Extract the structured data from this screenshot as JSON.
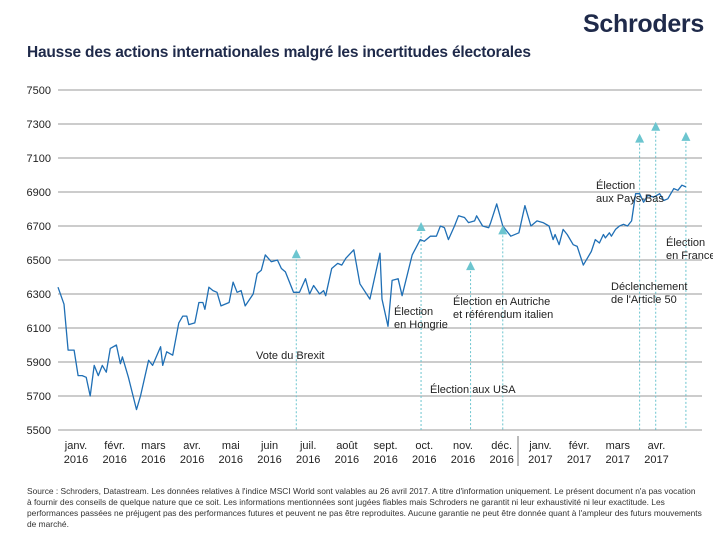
{
  "brand": "Schroders",
  "colors": {
    "brand_navy": "#1f2a4a",
    "line": "#1f6fb5",
    "marker": "#6cc5cf",
    "grid": "#9a9a9a"
  },
  "chart_data": {
    "type": "line",
    "title": "Hausse des actions internationales malgré les incertitudes électorales",
    "xlabel": "",
    "ylabel": "",
    "ylim": [
      5500,
      7500
    ],
    "yticks": [
      5500,
      5700,
      5900,
      6100,
      6300,
      6500,
      6700,
      6900,
      7100,
      7300,
      7500
    ],
    "grid": true,
    "x_unit": "months since January 2016",
    "x_tick_labels": [
      {
        "month": "janv.",
        "year": "2016"
      },
      {
        "month": "févr.",
        "year": "2016"
      },
      {
        "month": "mars",
        "year": "2016"
      },
      {
        "month": "avr.",
        "year": "2016"
      },
      {
        "month": "mai",
        "year": "2016"
      },
      {
        "month": "juin",
        "year": "2016"
      },
      {
        "month": "juil.",
        "year": "2016"
      },
      {
        "month": "août",
        "year": "2016"
      },
      {
        "month": "sept.",
        "year": "2016"
      },
      {
        "month": "oct.",
        "year": "2016"
      },
      {
        "month": "nov.",
        "year": "2016"
      },
      {
        "month": "déc.",
        "year": "2016"
      },
      {
        "month": "janv.",
        "year": "2017"
      },
      {
        "month": "févr.",
        "year": "2017"
      },
      {
        "month": "mars",
        "year": "2017"
      },
      {
        "month": "avr.",
        "year": "2017"
      }
    ],
    "series": [
      {
        "name": "Indice MSCI World",
        "points": [
          [
            0.0,
            6340
          ],
          [
            0.15,
            6240
          ],
          [
            0.25,
            5970
          ],
          [
            0.4,
            5970
          ],
          [
            0.5,
            5820
          ],
          [
            0.6,
            5820
          ],
          [
            0.7,
            5810
          ],
          [
            0.8,
            5700
          ],
          [
            0.9,
            5880
          ],
          [
            1.0,
            5820
          ],
          [
            1.1,
            5880
          ],
          [
            1.2,
            5840
          ],
          [
            1.3,
            5980
          ],
          [
            1.45,
            6000
          ],
          [
            1.55,
            5890
          ],
          [
            1.6,
            5930
          ],
          [
            1.75,
            5810
          ],
          [
            1.95,
            5620
          ],
          [
            2.05,
            5700
          ],
          [
            2.25,
            5910
          ],
          [
            2.35,
            5880
          ],
          [
            2.55,
            5990
          ],
          [
            2.6,
            5880
          ],
          [
            2.7,
            5960
          ],
          [
            2.85,
            5940
          ],
          [
            3.0,
            6130
          ],
          [
            3.1,
            6170
          ],
          [
            3.2,
            6170
          ],
          [
            3.25,
            6120
          ],
          [
            3.4,
            6130
          ],
          [
            3.5,
            6250
          ],
          [
            3.6,
            6250
          ],
          [
            3.65,
            6210
          ],
          [
            3.75,
            6340
          ],
          [
            3.85,
            6320
          ],
          [
            3.95,
            6310
          ],
          [
            4.05,
            6230
          ],
          [
            4.25,
            6250
          ],
          [
            4.35,
            6370
          ],
          [
            4.45,
            6310
          ],
          [
            4.55,
            6320
          ],
          [
            4.65,
            6230
          ],
          [
            4.85,
            6300
          ],
          [
            4.95,
            6420
          ],
          [
            5.05,
            6440
          ],
          [
            5.15,
            6530
          ],
          [
            5.3,
            6490
          ],
          [
            5.45,
            6500
          ],
          [
            5.55,
            6450
          ],
          [
            5.65,
            6430
          ],
          [
            5.85,
            6310
          ],
          [
            6.0,
            6310
          ],
          [
            6.15,
            6390
          ],
          [
            6.25,
            6300
          ],
          [
            6.35,
            6350
          ],
          [
            6.5,
            6300
          ],
          [
            6.6,
            6320
          ],
          [
            6.65,
            6290
          ],
          [
            6.8,
            6450
          ],
          [
            6.95,
            6480
          ],
          [
            7.05,
            6470
          ],
          [
            7.15,
            6510
          ],
          [
            7.35,
            6560
          ],
          [
            7.5,
            6360
          ],
          [
            7.75,
            6270
          ],
          [
            8.0,
            6540
          ],
          [
            8.05,
            6270
          ],
          [
            8.2,
            6110
          ],
          [
            8.3,
            6380
          ],
          [
            8.45,
            6390
          ],
          [
            8.55,
            6290
          ],
          [
            8.8,
            6530
          ],
          [
            9.0,
            6620
          ],
          [
            9.1,
            6610
          ],
          [
            9.25,
            6640
          ],
          [
            9.4,
            6640
          ],
          [
            9.5,
            6700
          ],
          [
            9.6,
            6690
          ],
          [
            9.7,
            6620
          ],
          [
            9.85,
            6700
          ],
          [
            9.95,
            6760
          ],
          [
            10.1,
            6750
          ],
          [
            10.2,
            6720
          ],
          [
            10.35,
            6730
          ],
          [
            10.4,
            6760
          ],
          [
            10.55,
            6700
          ],
          [
            10.7,
            6690
          ],
          [
            10.75,
            6720
          ],
          [
            10.9,
            6830
          ],
          [
            11.05,
            6700
          ],
          [
            11.25,
            6640
          ],
          [
            11.45,
            6660
          ],
          [
            11.6,
            6820
          ],
          [
            11.75,
            6700
          ],
          [
            11.9,
            6730
          ],
          [
            12.05,
            6720
          ],
          [
            12.2,
            6700
          ],
          [
            12.3,
            6620
          ],
          [
            12.35,
            6650
          ],
          [
            12.45,
            6590
          ],
          [
            12.55,
            6680
          ],
          [
            12.65,
            6650
          ],
          [
            12.8,
            6590
          ],
          [
            12.9,
            6580
          ],
          [
            13.05,
            6470
          ],
          [
            13.25,
            6550
          ],
          [
            13.35,
            6620
          ],
          [
            13.45,
            6600
          ],
          [
            13.55,
            6650
          ],
          [
            13.6,
            6630
          ],
          [
            13.7,
            6660
          ],
          [
            13.75,
            6640
          ],
          [
            13.85,
            6680
          ],
          [
            13.95,
            6700
          ],
          [
            14.05,
            6710
          ],
          [
            14.15,
            6700
          ],
          [
            14.25,
            6730
          ],
          [
            14.35,
            6890
          ],
          [
            14.45,
            6890
          ],
          [
            14.55,
            6840
          ],
          [
            14.65,
            6880
          ],
          [
            14.8,
            6870
          ],
          [
            14.95,
            6890
          ],
          [
            15.05,
            6850
          ],
          [
            15.15,
            6860
          ],
          [
            15.3,
            6920
          ],
          [
            15.4,
            6910
          ],
          [
            15.5,
            6940
          ],
          [
            15.6,
            6930
          ]
        ]
      }
    ],
    "annotations": [
      {
        "label": [
          "Vote du Brexit"
        ],
        "t": 5.92,
        "value": 6540
      },
      {
        "label": [
          "Élection",
          "en Hongrie"
        ],
        "t": 9.02,
        "value": 6700
      },
      {
        "label": [
          "Élection aux USA"
        ],
        "t": 10.25,
        "value": 6470
      },
      {
        "label": [
          "Élection en Autriche",
          "et référendum italien"
        ],
        "t": 11.05,
        "value": 6680
      },
      {
        "label": [
          "Élection",
          "aux Pays-Bas"
        ],
        "t": 14.45,
        "value": 7220
      },
      {
        "label": [
          "Déclenchement",
          "de l'Article 50"
        ],
        "t": 14.85,
        "value": 7290
      },
      {
        "label": [
          "Élection",
          "en France"
        ],
        "t": 15.6,
        "value": 7230
      }
    ]
  },
  "footer": {
    "source": "Source : Schroders, Datastream. Les données relatives à l'indice MSCI World sont valables au 26 avril 2017. A titre d'information uniquement. Le présent document n'a pas vocation à fournir des conseils de quelque nature que ce soit. Les informations mentionnées sont jugées fiables mais Schroders ne garantit ni leur exhaustivité ni leur exactitude. Les performances passées ne préjugent pas des performances futures et peuvent ne pas être reproduites. Aucune garantie ne peut être donnée quant à l'ampleur des futurs mouvements de marché."
  }
}
